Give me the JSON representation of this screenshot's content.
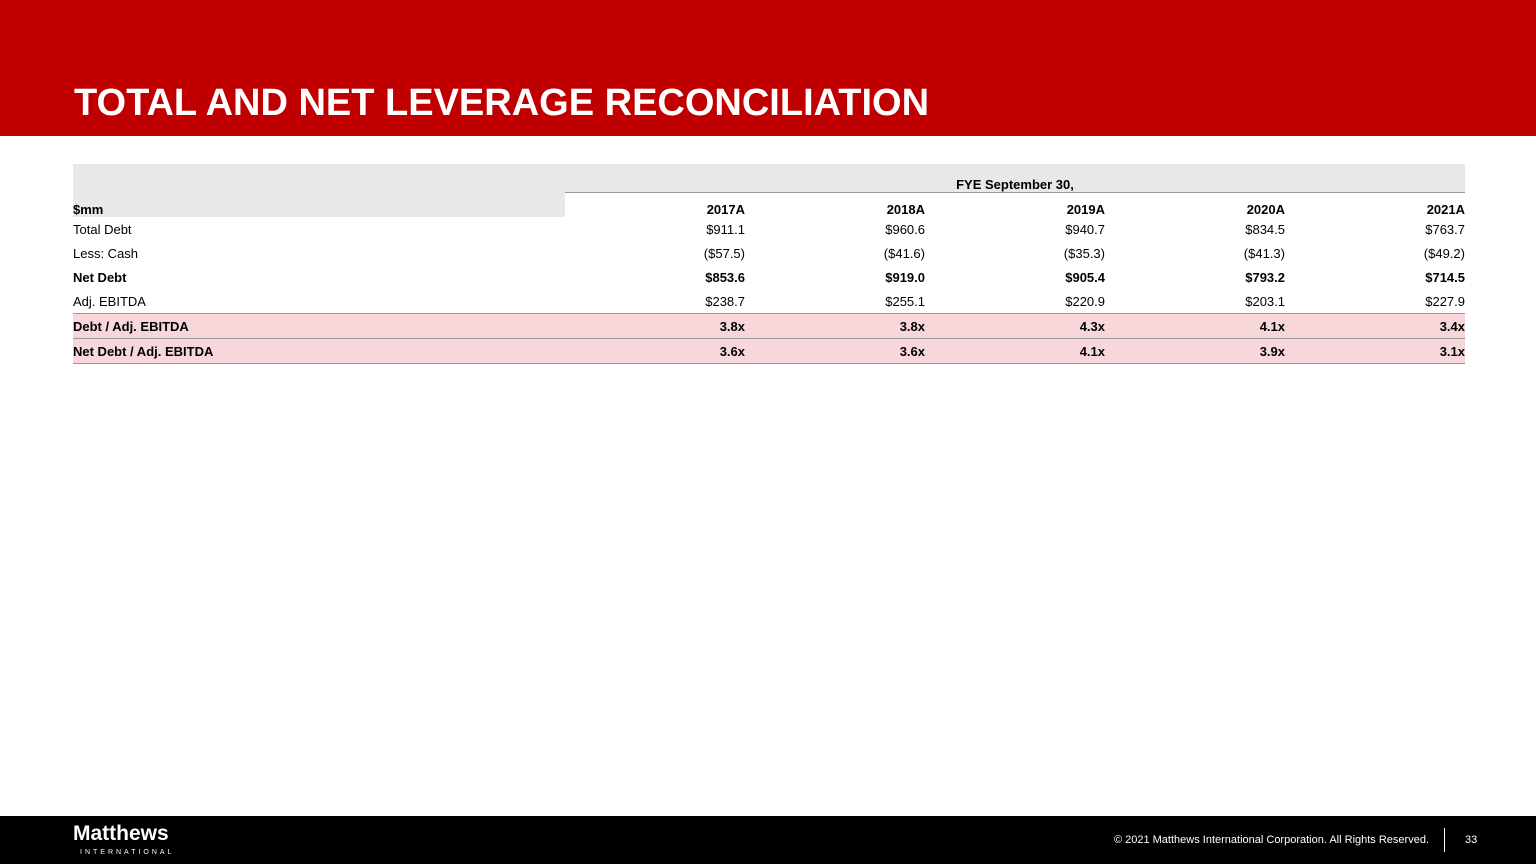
{
  "header": {
    "title": "TOTAL AND NET LEVERAGE RECONCILIATION"
  },
  "table": {
    "group_header": "FYE September 30,",
    "columns": [
      "$mm",
      "2017A",
      "2018A",
      "2019A",
      "2020A",
      "2021A"
    ],
    "rows": [
      [
        "Total Debt",
        "$911.1",
        "$960.6",
        "$940.7",
        "$834.5",
        "$763.7"
      ],
      [
        "Less: Cash",
        "($57.5)",
        "($41.6)",
        "($35.3)",
        "($41.3)",
        "($49.2)"
      ],
      [
        "Net Debt",
        "$853.6",
        "$919.0",
        "$905.4",
        "$793.2",
        "$714.5"
      ],
      [
        "Adj. EBITDA",
        "$238.7",
        "$255.1",
        "$220.9",
        "$203.1",
        "$227.9"
      ],
      [
        "Debt / Adj. EBITDA",
        "3.8x",
        "3.8x",
        "4.3x",
        "4.1x",
        "3.4x"
      ],
      [
        "Net Debt / Adj. EBITDA",
        "3.6x",
        "3.6x",
        "4.1x",
        "3.9x",
        "3.1x"
      ]
    ]
  },
  "footer": {
    "logo": "Matthews",
    "logo_sub": "INTERNATIONAL",
    "copyright": "© 2021 Matthews International Corporation. All Rights Reserved.",
    "page": "33"
  }
}
